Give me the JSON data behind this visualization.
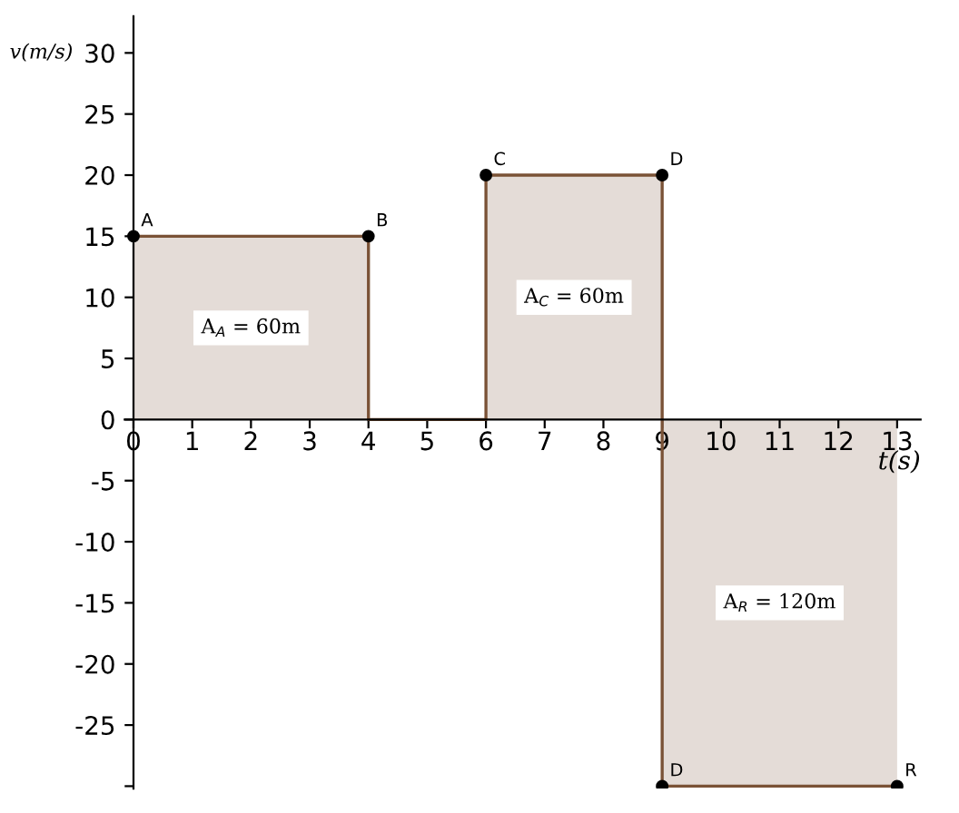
{
  "chart_data": {
    "type": "step",
    "xlabel": "t(s)",
    "ylabel": "v(m/s)",
    "x": [
      0,
      4,
      6,
      9,
      13
    ],
    "series": [
      {
        "color": "#7a5236",
        "values": [
          15,
          0,
          20,
          -30,
          -30
        ]
      },
      {
        "type": "scatter",
        "color": "#000000",
        "marker": "circle",
        "x": [
          0,
          4,
          6,
          9,
          9,
          13
        ],
        "values": [
          15,
          15,
          20,
          20,
          -30,
          -30
        ]
      }
    ],
    "xlim": [
      -0.15,
      13.4
    ],
    "ylim": [
      -30.2,
      33
    ],
    "xticks": [
      0,
      1,
      2,
      3,
      4,
      5,
      6,
      7,
      8,
      9,
      10,
      11,
      12,
      13
    ],
    "yticks": [
      {
        "value": -30,
        "label": null
      },
      -25,
      -20,
      -15,
      -10,
      -5,
      0,
      5,
      10,
      15,
      20,
      25,
      30
    ],
    "grid": false,
    "legend": false,
    "annotations": [
      {
        "text": "A",
        "x": 0,
        "y": 15
      },
      {
        "text": "B",
        "x": 4,
        "y": 15
      },
      {
        "text": "C",
        "x": 6,
        "y": 20
      },
      {
        "text": "D",
        "x": 9,
        "y": 20
      },
      {
        "text": "D",
        "x": 9,
        "y": -30
      },
      {
        "text": "R",
        "x": 13,
        "y": -30
      },
      "A$_{A}$ = 60m",
      "A$_{C}$ = 60m",
      "A$_{R}$ = 120m"
    ]
  }
}
